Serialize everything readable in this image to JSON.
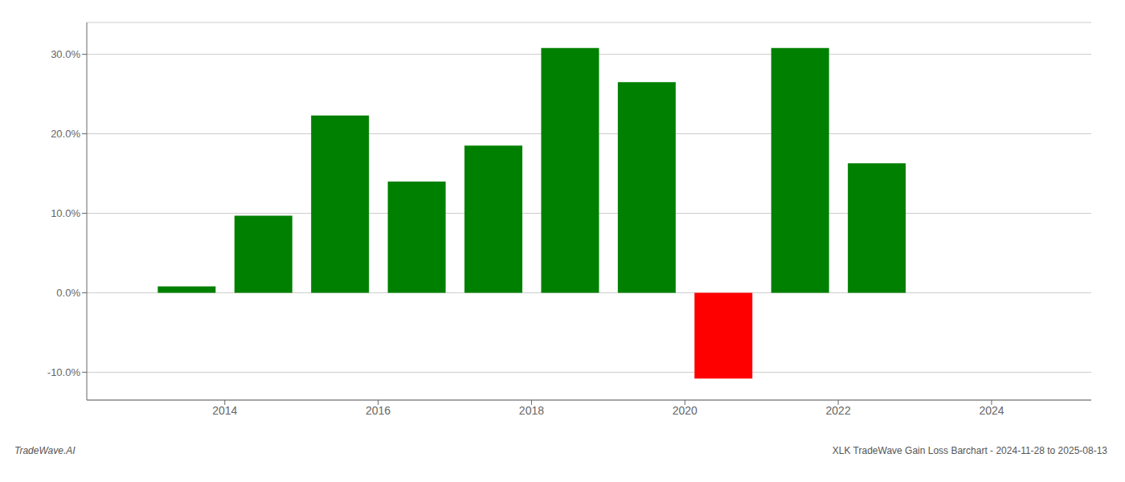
{
  "chart_data": {
    "type": "bar",
    "x": [
      2013.5,
      2014.5,
      2015.5,
      2016.5,
      2017.5,
      2018.5,
      2019.5,
      2020.5,
      2021.5,
      2022.5,
      2023.5
    ],
    "values": [
      0.8,
      9.7,
      22.3,
      14.0,
      18.5,
      30.8,
      26.5,
      -10.8,
      30.8,
      16.3,
      0.0
    ],
    "colors": [
      "#008000",
      "#008000",
      "#008000",
      "#008000",
      "#008000",
      "#008000",
      "#008000",
      "#ff0000",
      "#008000",
      "#008000",
      "#008000"
    ],
    "xlim": [
      2012.2,
      2025.3
    ],
    "xticks": [
      2014,
      2016,
      2018,
      2020,
      2022,
      2024
    ],
    "ylim": [
      -13.5,
      34
    ],
    "yticks": [
      {
        "value": -10.0,
        "label": "-10.0%"
      },
      {
        "value": 0.0,
        "label": "0.0%"
      },
      {
        "value": 10.0,
        "label": "10.0%"
      },
      {
        "value": 20.0,
        "label": "20.0%"
      },
      {
        "value": 30.0,
        "label": "30.0%"
      }
    ],
    "grid": true,
    "annotations": [
      "TradeWave.AI",
      "XLK TradeWave Gain Loss Barchart - 2024-11-28 to 2025-08-13"
    ]
  }
}
